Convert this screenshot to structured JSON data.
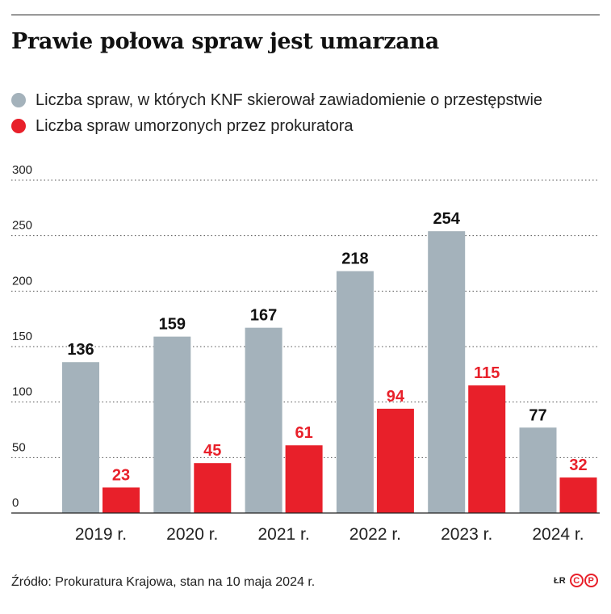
{
  "title": "Prawie połowa spraw jest umarzana",
  "colors": {
    "gray": "#a4b2bb",
    "red": "#e8202a"
  },
  "chart_data": {
    "type": "bar",
    "categories": [
      "2019 r.",
      "2020 r.",
      "2021 r.",
      "2022 r.",
      "2023 r.",
      "2024 r."
    ],
    "series": [
      {
        "name": "Liczba spraw, w których KNF skierował zawiadomienie o przestępstwie",
        "values": [
          136,
          159,
          167,
          218,
          254,
          77
        ]
      },
      {
        "name": "Liczba spraw umorzonych przez prokuratora",
        "values": [
          23,
          45,
          61,
          94,
          115,
          32
        ]
      }
    ],
    "ylim": [
      0,
      300
    ],
    "yticks": [
      0,
      50,
      100,
      150,
      200,
      250,
      300
    ],
    "grid": true,
    "legend_position": "top-left"
  },
  "source": "Źródło: Prokuratura Krajowa, stan na 10 maja 2024 r.",
  "brand": {
    "initials": "ŁR",
    "c": "C",
    "p": "P"
  }
}
